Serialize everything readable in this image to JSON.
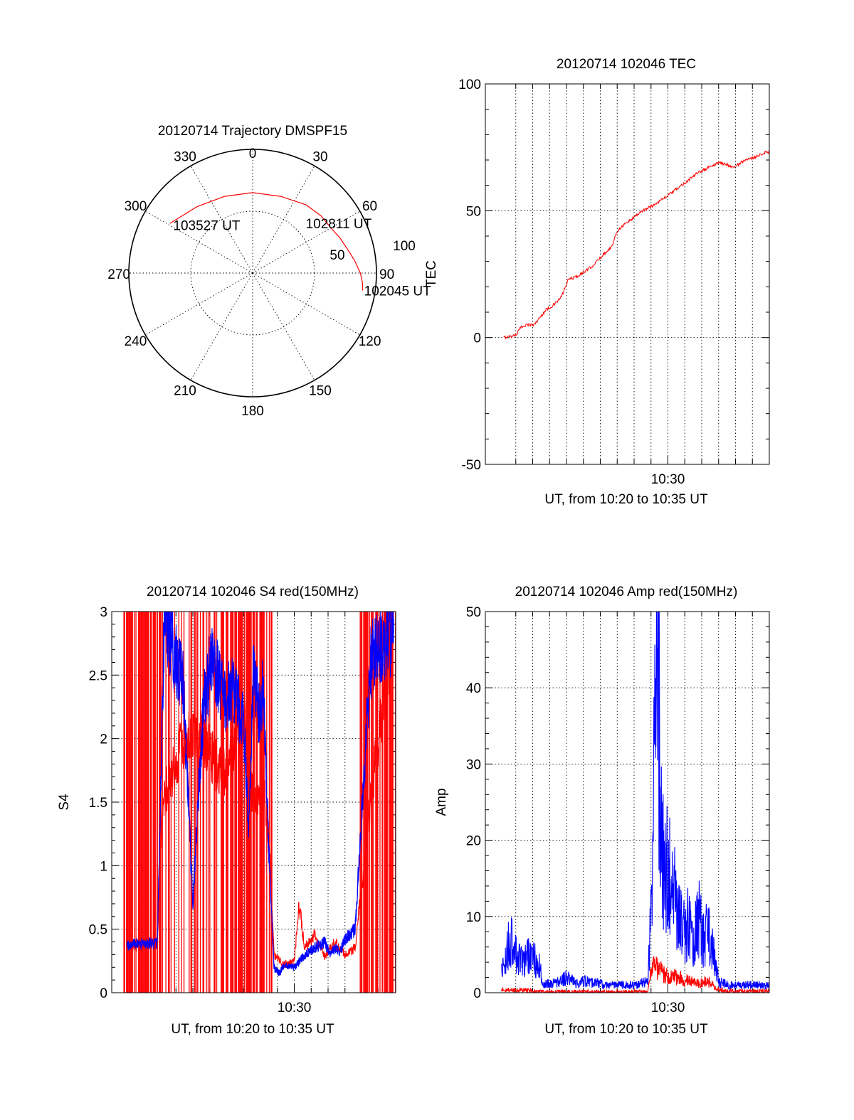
{
  "chart_data": [
    {
      "type": "polar",
      "title": "20120714 Trajectory DMSPF15",
      "azimuth_labels": [
        "0",
        "30",
        "60",
        "90",
        "120",
        "150",
        "180",
        "210",
        "240",
        "270",
        "300",
        "330"
      ],
      "radial_labels": [
        "50",
        "100"
      ],
      "r_max": 100,
      "color": "#ff0000",
      "annotations": [
        {
          "text": "103527 UT",
          "az": 300.8,
          "r": 76
        },
        {
          "text": "102811 UT",
          "az": 46,
          "r": 58
        },
        {
          "text": "102045 UT",
          "az": 99,
          "r": 90
        }
      ],
      "trajectory": {
        "az": [
          301,
          320,
          340,
          0,
          20,
          38,
          50,
          60,
          68,
          76,
          83,
          90,
          95,
          99
        ],
        "r": [
          78,
          70,
          66,
          65,
          66,
          70,
          72,
          73,
          76,
          79,
          83,
          87,
          89,
          90
        ]
      }
    },
    {
      "type": "line",
      "title": "20120714 102046 TEC",
      "xlabel": "UT, from 10:20 to 10:35 UT",
      "ylabel": "TEC",
      "xlim": [
        10.32,
        10.6
      ],
      "ylim": [
        -50,
        100
      ],
      "yticks": [
        -50,
        0,
        50,
        100
      ],
      "xticks": [
        {
          "value": 10.5,
          "label": "10:30"
        }
      ],
      "color": "#ff0000",
      "series": [
        {
          "x": [
            10.338,
            10.345,
            10.35,
            10.355,
            10.36,
            10.368,
            10.374,
            10.38,
            10.388,
            10.395,
            10.402,
            10.41,
            10.418,
            10.425,
            10.43,
            10.437,
            10.445,
            10.45,
            10.455,
            10.462,
            10.468,
            10.475,
            10.48,
            10.485,
            10.492,
            10.5,
            10.51,
            10.52,
            10.53,
            10.54,
            10.55,
            10.56,
            10.565,
            10.572,
            10.578,
            10.585,
            10.59,
            10.596,
            10.6
          ],
          "y": [
            0,
            0.5,
            1,
            4,
            5,
            5,
            8,
            11,
            13,
            16,
            23,
            24,
            26,
            28,
            30,
            33,
            36,
            42,
            44,
            46,
            48,
            50,
            51,
            52,
            54,
            56,
            59,
            62,
            65,
            67,
            69,
            68,
            67,
            69,
            70,
            71,
            72,
            73,
            73
          ]
        }
      ]
    },
    {
      "type": "line",
      "title": "20120714 102046 S4 red(150MHz)",
      "xlabel": "UT, from 10:20 to 10:35 UT",
      "ylabel": "S4",
      "xlim": [
        10.32,
        10.6
      ],
      "ylim": [
        0,
        3
      ],
      "yticks": [
        0,
        0.5,
        1,
        1.5,
        2,
        2.5,
        3
      ],
      "ytick_labels": [
        "0",
        "0.5",
        "1",
        "1.5",
        "2",
        "2.5",
        "3"
      ],
      "xticks": [
        {
          "value": 10.5,
          "label": "10:30"
        }
      ],
      "series": [
        {
          "color": "#0000ff",
          "x": [
            10.335,
            10.345,
            10.355,
            10.365,
            10.372,
            10.38,
            10.39,
            10.4,
            10.405,
            10.41,
            10.418,
            10.425,
            10.43,
            10.44,
            10.45,
            10.455,
            10.46,
            10.465,
            10.47,
            10.473,
            10.476,
            10.48,
            10.485,
            10.49,
            10.5,
            10.51,
            10.52,
            10.53,
            10.535,
            10.54,
            10.545,
            10.55,
            10.56,
            10.575,
            10.59,
            10.598
          ],
          "y": [
            0.38,
            0.38,
            0.39,
            0.39,
            3,
            2.7,
            2.5,
            0.7,
            1.5,
            2.2,
            2.6,
            2.5,
            2.3,
            2.4,
            2.1,
            1.35,
            2.6,
            2.2,
            2.4,
            1.5,
            0.9,
            0.2,
            0.15,
            0.22,
            0.2,
            0.3,
            0.35,
            0.4,
            0.3,
            0.35,
            0.32,
            0.42,
            0.5,
            2.6,
            2.8,
            2.8
          ]
        },
        {
          "color": "#ff0000",
          "x": [
            10.335,
            10.345,
            10.355,
            10.365,
            10.37,
            10.39,
            10.41,
            10.43,
            10.45,
            10.46,
            10.47,
            10.475,
            10.48,
            10.49,
            10.5,
            10.505,
            10.51,
            10.52,
            10.53,
            10.54,
            10.55,
            10.56,
            10.575,
            10.598
          ],
          "y": [
            0.4,
            0.35,
            0.4,
            0.38,
            1.5,
            2.0,
            2.0,
            1.7,
            2.2,
            1.5,
            1.6,
            1.2,
            0.3,
            0.22,
            0.25,
            0.7,
            0.35,
            0.45,
            0.28,
            0.4,
            0.3,
            0.35,
            1.5,
            2.9
          ]
        }
      ]
    },
    {
      "type": "line",
      "title": "20120714 102046 Amp red(150MHz)",
      "xlabel": "UT, from 10:20 to 10:35 UT",
      "ylabel": "Amp",
      "xlim": [
        10.32,
        10.6
      ],
      "ylim": [
        0,
        50
      ],
      "yticks": [
        0,
        10,
        20,
        30,
        40,
        50
      ],
      "xticks": [
        {
          "value": 10.5,
          "label": "10:30"
        }
      ],
      "series": [
        {
          "color": "#0000ff",
          "x": [
            10.336,
            10.345,
            10.355,
            10.365,
            10.375,
            10.376,
            10.39,
            10.4,
            10.41,
            10.42,
            10.44,
            10.47,
            10.48,
            10.484,
            10.487,
            10.49,
            10.493,
            10.495,
            10.5,
            10.505,
            10.51,
            10.515,
            10.52,
            10.525,
            10.53,
            10.535,
            10.54,
            10.545,
            10.548,
            10.55,
            10.56,
            10.575,
            10.6
          ],
          "y": [
            3,
            7,
            4,
            5,
            3,
            1,
            1.3,
            2,
            1.2,
            1.5,
            1.0,
            1.0,
            1.5,
            12,
            30,
            42,
            25,
            18,
            16,
            14,
            10,
            8,
            9,
            6,
            10,
            7,
            8,
            5,
            3,
            1.5,
            1.0,
            1.0,
            1.0
          ]
        },
        {
          "color": "#ff0000",
          "x": [
            10.336,
            10.36,
            10.376,
            10.4,
            10.44,
            10.48,
            10.484,
            10.487,
            10.49,
            10.5,
            10.51,
            10.52,
            10.53,
            10.54,
            10.548,
            10.56,
            10.6
          ],
          "y": [
            0.4,
            0.3,
            0.1,
            0.1,
            0.1,
            0.1,
            3,
            4,
            3,
            2,
            2,
            1.5,
            1.2,
            1.5,
            0.5,
            0.2,
            0.2
          ]
        }
      ]
    }
  ]
}
